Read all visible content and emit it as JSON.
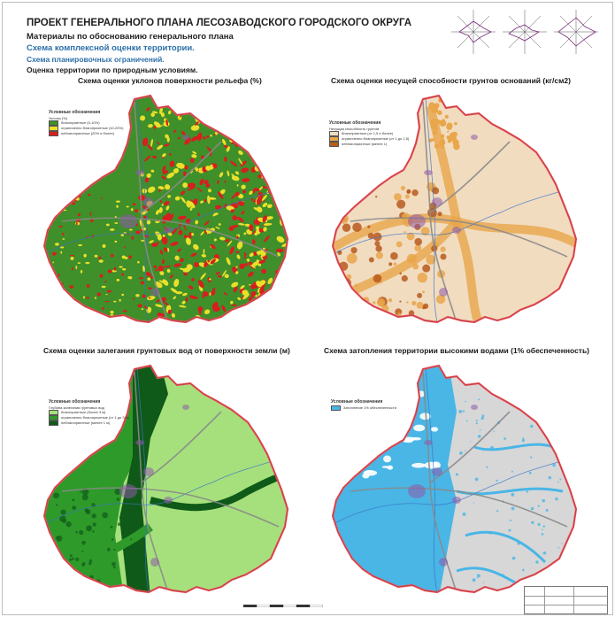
{
  "header": {
    "title": "ПРОЕКТ ГЕНЕРАЛЬНОГО ПЛАНА ЛЕСОЗАВОДСКОГО ГОРОДСКОГО ОКРУГА",
    "subtitle": "Материалы по обоснованию генерального плана",
    "section": "Схема комплексной оценки территории.",
    "subsection": "Схема планировочных ограничений.",
    "topic": "Оценка территории по природным условиям."
  },
  "panels": [
    {
      "title": "Схема оценки уклонов поверхности рельефа (%)",
      "legend_title": "Условные обозначения",
      "legend_items": [
        "Уклоны (%)",
        "благоприятные (0-10%)",
        "ограниченно благоприятные (10-20%)",
        "неблагоприятные (20% и более)"
      ],
      "colors": {
        "base": "#3f8f2a",
        "mid": "#e8e02a",
        "bad": "#d81e1e"
      }
    },
    {
      "title": "Схема оценки несущей способности грунтов оснований (кг/см2)",
      "legend_title": "Условные обозначения",
      "legend_items": [
        "Несущая способность грунтов",
        "благоприятные (от 1,5 и более)",
        "ограниченно благоприятные (от 1 до 1,5)",
        "неблагоприятные (менее 1)"
      ],
      "colors": {
        "base": "#f1dcc0",
        "mid": "#e9a64a",
        "bad": "#b85b1d"
      }
    },
    {
      "title": "Схема оценки залегания грунтовых вод от поверхности земли (м)",
      "legend_title": "Условные обозначения",
      "legend_items": [
        "Глубина залегания грунтовых вод",
        "благоприятные (более 3 м)",
        "ограниченно благоприятные (от 1 до 3 м)",
        "неблагоприятные (менее 1 м)"
      ],
      "colors": {
        "base": "#a6e07c",
        "mid": "#2e9a2a",
        "bad": "#0f5a18"
      }
    },
    {
      "title": "Схема затопления территории высокими водами (1% обеспеченность)",
      "legend_title": "Условные обозначения",
      "legend_items": [
        "Затопление 1% обеспеченности"
      ],
      "colors": {
        "base": "#d7d7d7",
        "mid": "#49b6e6",
        "bad": "#ffffff"
      }
    }
  ],
  "colors": {
    "boundary": "#e8505a",
    "road": "#8a8a8a",
    "river": "#3a73c8",
    "town": "#8e5aa8"
  }
}
